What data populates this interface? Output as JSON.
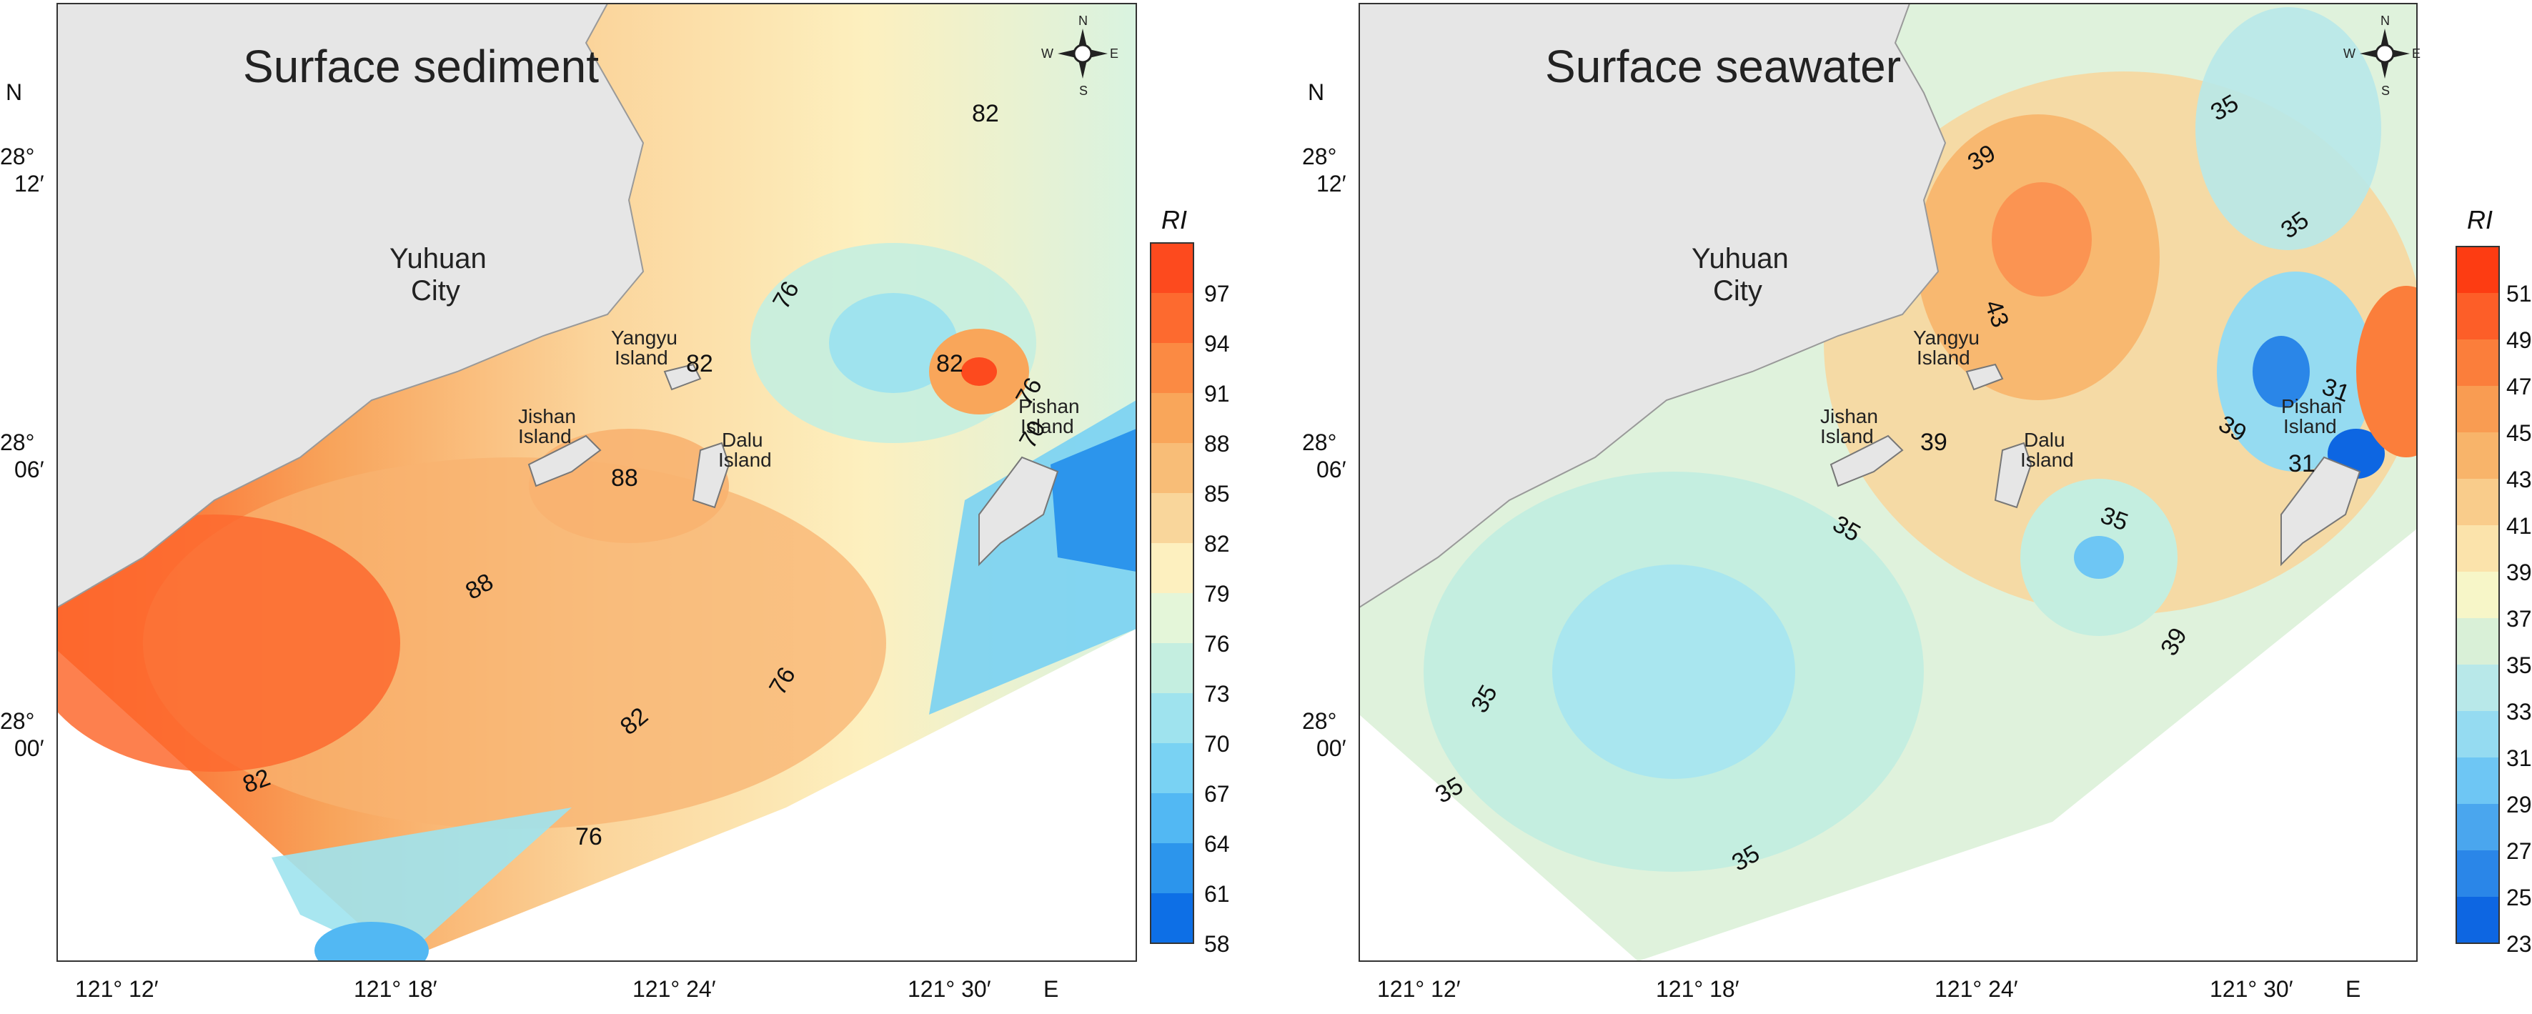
{
  "panels": [
    {
      "title": "Surface sediment",
      "city": [
        "Yuhuan",
        "City"
      ],
      "islands": [
        {
          "name": "Yangyu",
          "suffix": "Island"
        },
        {
          "name": "Jishan",
          "suffix": "Island"
        },
        {
          "name": "Dalu",
          "suffix": "Island"
        },
        {
          "name": "Pishan",
          "suffix": "Island"
        }
      ],
      "contour_labels": [
        "82",
        "76",
        "82",
        "82",
        "88",
        "88",
        "82",
        "82",
        "76",
        "76",
        "76",
        "70"
      ],
      "north_label": "N",
      "lat_labels": [
        [
          "28°",
          "12′"
        ],
        [
          "28°",
          "06′"
        ],
        [
          "28°",
          "00′"
        ]
      ],
      "lon_labels": [
        "121° 12′",
        "121° 18′",
        "121° 24′",
        "121° 30′"
      ],
      "east_label": "E",
      "legend": {
        "title": "RI",
        "ticks": [
          "97",
          "94",
          "91",
          "88",
          "85",
          "82",
          "79",
          "76",
          "73",
          "70",
          "67",
          "64",
          "61",
          "58"
        ],
        "colors": [
          "#fd4a1e",
          "#fd6a2f",
          "#fb8a43",
          "#f9a65a",
          "#f8bd77",
          "#f9d69b",
          "#fdf0bf",
          "#e4f6d9",
          "#c4eee0",
          "#9fe3ee",
          "#79d2f3",
          "#52b8f3",
          "#2c95ec",
          "#0d6fe6"
        ]
      },
      "compass": {
        "n": "N",
        "s": "S",
        "e": "E",
        "w": "W"
      }
    },
    {
      "title": "Surface seawater",
      "city": [
        "Yuhuan",
        "City"
      ],
      "islands": [
        {
          "name": "Yangyu",
          "suffix": "Island"
        },
        {
          "name": "Jishan",
          "suffix": "Island"
        },
        {
          "name": "Dalu",
          "suffix": "Island"
        },
        {
          "name": "Pishan",
          "suffix": "Island"
        }
      ],
      "contour_labels": [
        "35",
        "39",
        "35",
        "43",
        "39",
        "39",
        "35",
        "35",
        "39",
        "35",
        "35",
        "35",
        "31",
        "31"
      ],
      "north_label": "N",
      "lat_labels": [
        [
          "28°",
          "12′"
        ],
        [
          "28°",
          "06′"
        ],
        [
          "28°",
          "00′"
        ]
      ],
      "lon_labels": [
        "121° 12′",
        "121° 18′",
        "121° 24′",
        "121° 30′"
      ],
      "east_label": "E",
      "legend": {
        "title": "RI",
        "ticks": [
          "51",
          "49",
          "47",
          "45",
          "43",
          "41",
          "39",
          "37",
          "35",
          "33",
          "31",
          "29",
          "27",
          "25",
          "23"
        ],
        "colors": [
          "#fd3c12",
          "#fd5e28",
          "#fb7e3b",
          "#f99c52",
          "#f8b46a",
          "#f9cc8b",
          "#fbe3ab",
          "#f7f6c8",
          "#d9f0d7",
          "#b8e8e9",
          "#95dbf1",
          "#6ec6f4",
          "#4aa6ee",
          "#2a86e8",
          "#0d66e2"
        ]
      },
      "compass": {
        "n": "N",
        "s": "S",
        "e": "E",
        "w": "W"
      }
    }
  ]
}
